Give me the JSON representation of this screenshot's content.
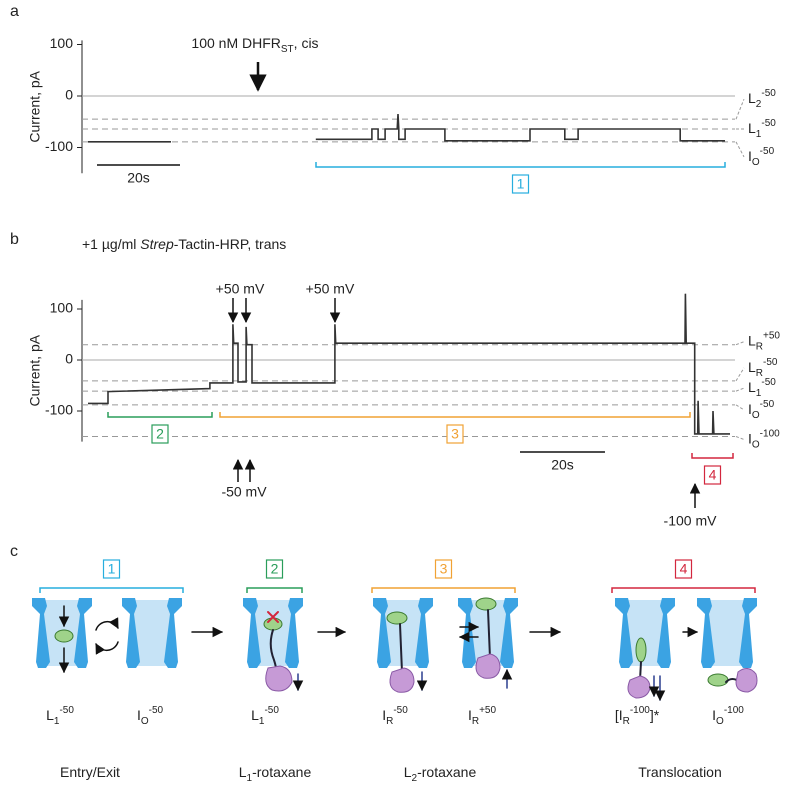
{
  "chart_data": [
    {
      "type": "line",
      "panel_label": "a",
      "y_label": "Current, pA",
      "ylim": [
        -150,
        108
      ],
      "yticks": [
        100,
        0,
        -100
      ],
      "xlim": [
        0,
        154.7
      ],
      "zero_line": true,
      "annotation": {
        "main": "100 nM DHFR",
        "sub": "ST",
        "rest": ", cis"
      },
      "scalebar": {
        "length": 20,
        "label": "20s"
      },
      "levels": [
        {
          "value": -45,
          "label": {
            "main": "L",
            "sub": "2",
            "sup": "-50"
          }
        },
        {
          "value": -64,
          "label": {
            "main": "L",
            "sub": "1",
            "sup": "-50"
          }
        },
        {
          "value": -89,
          "label": {
            "main": "I",
            "sub": "O",
            "sup": "-50"
          }
        }
      ],
      "brackets": [
        {
          "label": "1",
          "color": "#27aede"
        }
      ],
      "color": "#333333",
      "x": [
        0,
        20,
        37,
        54.9,
        68.4,
        68.4,
        69.9,
        69.9,
        71.6,
        71.6,
        74.5,
        74.7,
        74.9,
        74.9,
        76.4,
        76.4,
        86.0,
        86.0,
        106.5,
        106.5,
        114.9,
        114.9,
        118.1,
        118.1,
        142.7,
        142.7,
        153.5
      ],
      "values": [
        -89,
        -89,
        null,
        -84,
        -84,
        -64,
        -64,
        -84,
        -84,
        -64,
        -64,
        -35,
        -64,
        -84,
        -84,
        -64,
        -64,
        -87,
        -87,
        -64,
        -64,
        -84,
        -84,
        -64,
        -64,
        -87,
        -87
      ]
    },
    {
      "type": "line",
      "panel_label": "b",
      "y_label": "Current, pA",
      "ylim": [
        -160,
        118
      ],
      "yticks": [
        100,
        0,
        -100
      ],
      "xlim": [
        0,
        151.1
      ],
      "zero_line": true,
      "annotation": {
        "main": "+1 µg/ml ",
        "italic": "Strep",
        "rest": "-Tactin-HRP, trans"
      },
      "scalebar": {
        "length": 20,
        "label": "20s"
      },
      "voltage_labels": [
        "+50 mV",
        "+50 mV",
        "-50 mV",
        "-100 mV"
      ],
      "levels": [
        {
          "value": 30,
          "label": {
            "main": "L",
            "sub": "R",
            "sup": "+50"
          }
        },
        {
          "value": -41,
          "label": {
            "main": "L",
            "sub": "R",
            "sup": "-50"
          }
        },
        {
          "value": -61,
          "label": {
            "main": "L",
            "sub": "1",
            "sup": "-50"
          }
        },
        {
          "value": -88,
          "label": {
            "main": "I",
            "sub": "O",
            "sup": "-50"
          }
        },
        {
          "value": -150,
          "label": {
            "main": "I",
            "sub": "O",
            "sup": "-100"
          }
        }
      ],
      "brackets": [
        {
          "label": "2",
          "color": "#2a9d5a"
        },
        {
          "label": "3",
          "color": "#f1a234"
        },
        {
          "label": "4",
          "color": "#d3273e"
        }
      ],
      "color": "#333333",
      "x": [
        0,
        4.7,
        4.7,
        28.7,
        28.7,
        34.1,
        34.1,
        34.3,
        35.3,
        35.3,
        37.2,
        37.2,
        37.4,
        38.6,
        38.6,
        58.1,
        58.1,
        58.3,
        140.5,
        140.6,
        140.8,
        142.8,
        142.8,
        143.5,
        143.6,
        143.8,
        147,
        147.1,
        147.3,
        151.1
      ],
      "values": [
        -85,
        -85,
        -62,
        -56,
        -45,
        -45,
        70,
        33,
        33,
        -43,
        -43,
        65,
        30,
        30,
        -45,
        -45,
        70,
        33,
        33,
        130,
        33,
        33,
        -145,
        -145,
        -80,
        -145,
        -145,
        -100,
        -145,
        -145
      ]
    }
  ],
  "diagram": {
    "label": "c",
    "groups": [
      {
        "number": "1",
        "color": "#27aede"
      },
      {
        "number": "2",
        "color": "#2a9d5a"
      },
      {
        "number": "3",
        "color": "#f1a234"
      },
      {
        "number": "4",
        "color": "#d3273e"
      }
    ],
    "states": [
      {
        "main": "L",
        "sub": "1",
        "sup": "-50"
      },
      {
        "main": "I",
        "sub": "O",
        "sup": "-50"
      },
      {
        "main": "L",
        "sub": "1",
        "sup": "-50"
      },
      {
        "main": "I",
        "sub": "R",
        "sup": "-50"
      },
      {
        "main": "I",
        "sub": "R",
        "sup": "+50"
      },
      {
        "prefix": "[",
        "main": "I",
        "sub": "R",
        "sup": "-100",
        "rest": "]*"
      },
      {
        "main": "I",
        "sub": "O",
        "sup": "-100"
      }
    ],
    "captions": [
      {
        "main": "Entry/Exit"
      },
      {
        "main": "L",
        "sub": "1",
        "rest": "-rotaxane"
      },
      {
        "main": "L",
        "sub": "2",
        "rest": "-rotaxane"
      },
      {
        "main": "Translocation"
      }
    ]
  }
}
